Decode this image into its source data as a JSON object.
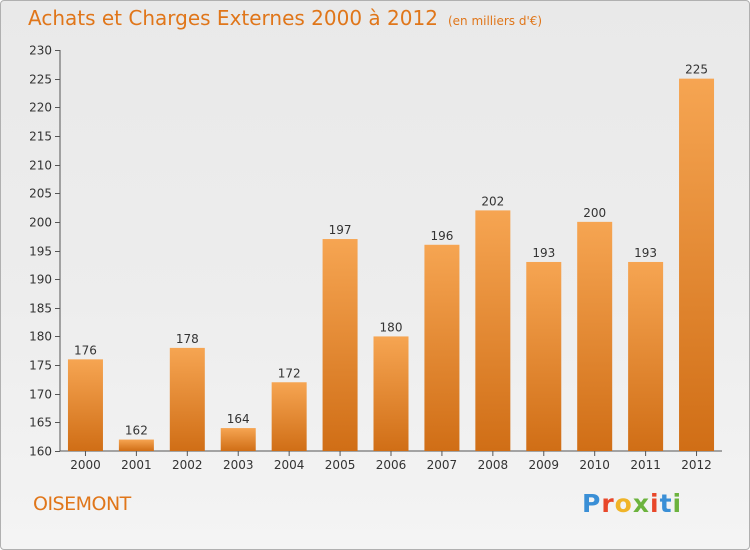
{
  "chart_data": {
    "type": "bar",
    "title": "Achats et Charges Externes 2000 à 2012",
    "subtitle": "(en milliers d'€)",
    "categories": [
      "2000",
      "2001",
      "2002",
      "2003",
      "2004",
      "2005",
      "2006",
      "2007",
      "2008",
      "2009",
      "2010",
      "2011",
      "2012"
    ],
    "values": [
      176,
      162,
      178,
      164,
      172,
      197,
      180,
      196,
      202,
      193,
      200,
      193,
      225
    ],
    "ylim": [
      160,
      230
    ],
    "yticks": [
      160,
      165,
      170,
      175,
      180,
      185,
      190,
      195,
      200,
      205,
      210,
      215,
      220,
      225,
      230
    ],
    "xlabel": "",
    "ylabel": "",
    "grid": false,
    "bar_color": "#f0943a"
  },
  "location": "OISEMONT",
  "brand": {
    "letters": [
      "P",
      "r",
      "o",
      "x",
      "i",
      "t",
      "i"
    ],
    "colors": [
      "#3a8fd6",
      "#e8472a",
      "#f0b428",
      "#6cb33e",
      "#e8472a",
      "#3a8fd6",
      "#6cb33e"
    ]
  }
}
